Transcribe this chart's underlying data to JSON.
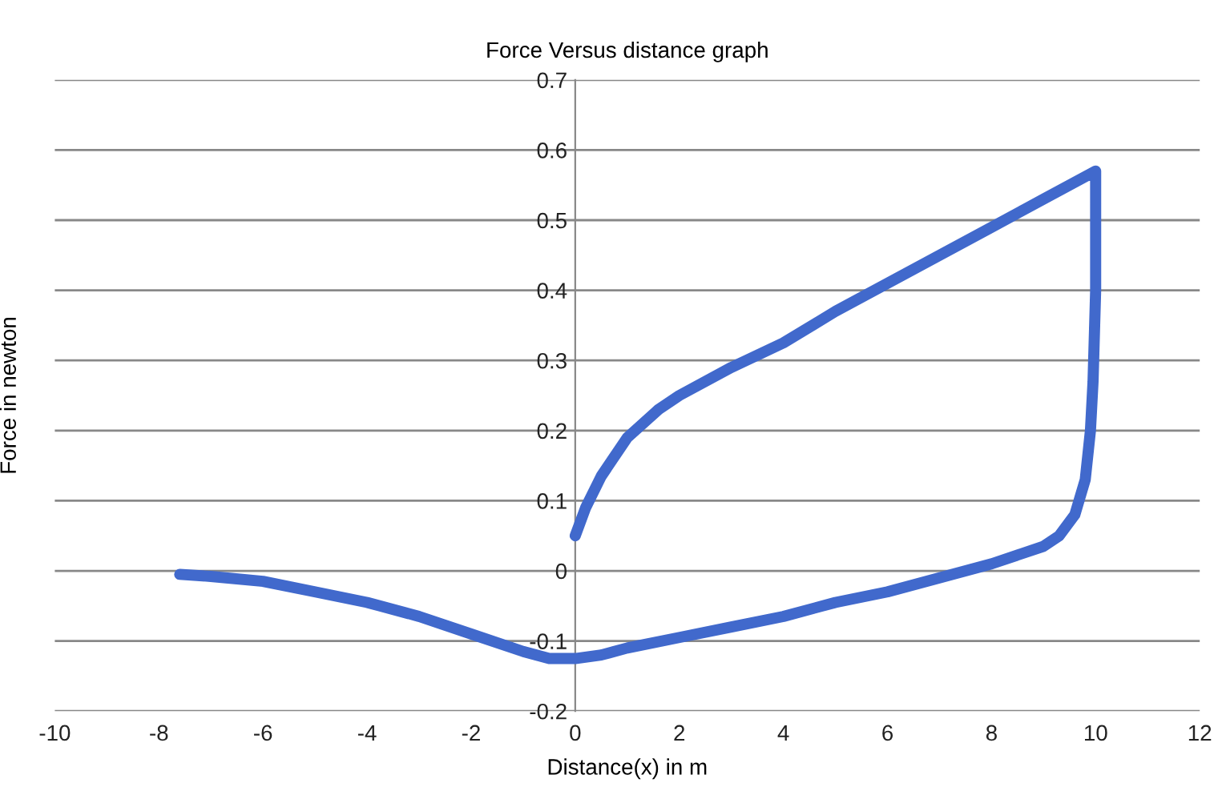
{
  "chart_data": {
    "type": "line",
    "title": "Force Versus distance graph",
    "xlabel": "Distance(x) in m",
    "ylabel": "Force in newton",
    "xlim": [
      -10,
      12
    ],
    "xticks": [
      -10,
      -8,
      -6,
      -4,
      -2,
      0,
      2,
      4,
      6,
      8,
      10,
      12
    ],
    "ylim": [
      -0.2,
      0.7
    ],
    "yticks": [
      -0.2,
      -0.1,
      0,
      0.1,
      0.2,
      0.3,
      0.4,
      0.5,
      0.6,
      0.7
    ],
    "grid": "y",
    "marker": "none",
    "line_style": "solid",
    "series": [
      {
        "color": "#4169cc",
        "x": [
          0,
          0.2,
          0.5,
          1,
          1.6,
          2,
          3,
          4,
          5,
          6,
          7,
          8,
          9,
          10,
          10,
          9.95,
          9.9,
          9.8,
          9.6,
          9.3,
          9,
          8,
          7,
          6,
          5,
          4,
          3,
          2,
          1,
          0.5,
          0,
          -0.5,
          -1,
          -2,
          -3,
          -4,
          -5,
          -6,
          -7,
          -7.6
        ],
        "values": [
          0.05,
          0.09,
          0.135,
          0.19,
          0.23,
          0.25,
          0.29,
          0.325,
          0.37,
          0.41,
          0.45,
          0.49,
          0.53,
          0.57,
          0.4,
          0.27,
          0.2,
          0.13,
          0.08,
          0.05,
          0.035,
          0.01,
          -0.01,
          -0.03,
          -0.045,
          -0.065,
          -0.08,
          -0.095,
          -0.11,
          -0.12,
          -0.125,
          -0.125,
          -0.115,
          -0.09,
          -0.065,
          -0.045,
          -0.03,
          -0.015,
          -0.008,
          -0.005
        ]
      }
    ]
  }
}
